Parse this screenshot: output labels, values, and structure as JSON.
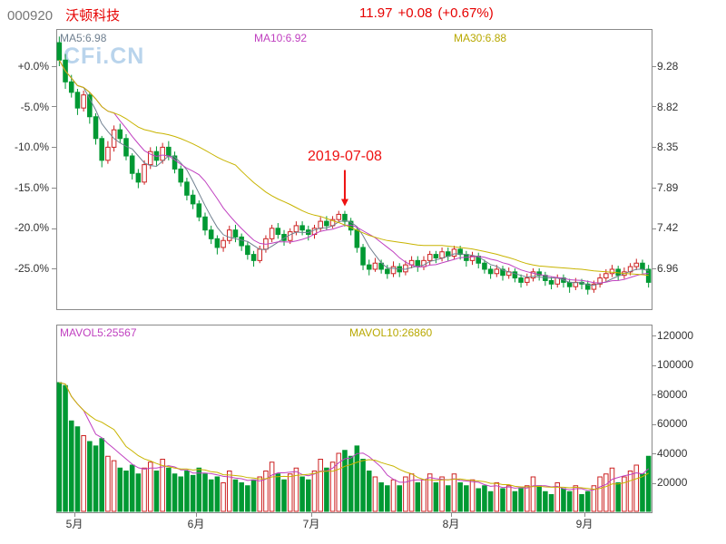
{
  "header": {
    "code": "000920",
    "name": "沃顿科技",
    "price": "11.97",
    "change": "+0.08",
    "change_pct": "(+0.67%)"
  },
  "watermark": "CFi.CN",
  "annotation": {
    "text": "2019-07-08"
  },
  "main_chart": {
    "ma5_label": "MA5:6.98",
    "ma10_label": "MA10:6.92",
    "ma30_label": "MA30:6.88"
  },
  "volume_chart": {
    "mavol5_label": "MAVOL5:25567",
    "mavol10_label": "MAVOL10:26860"
  },
  "axes": {
    "main_left": [
      "+0.0%",
      "-5.0%",
      "-10.0%",
      "-15.0%",
      "-20.0%",
      "-25.0%"
    ],
    "main_right": [
      "9.28",
      "8.82",
      "8.35",
      "7.89",
      "7.42",
      "6.96"
    ],
    "vol_right": [
      "120000",
      "100000",
      "80000",
      "60000",
      "40000",
      "20000"
    ],
    "months": [
      "5月",
      "6月",
      "7月",
      "8月",
      "9月"
    ]
  },
  "colors": {
    "up": "#cc2222",
    "down": "#009933",
    "ma5": "#708090",
    "ma10": "#c040c0",
    "ma30": "#c8b400",
    "annotation": "#ee1111",
    "watermark": "#b9d4ec",
    "border": "#8a8a8a"
  },
  "chart_data": {
    "type": "candlestick+volume",
    "title": "000920 沃顿科技 daily K-line with volume",
    "legend": [
      "MA5",
      "MA10",
      "MA30",
      "MAVOL5",
      "MAVOL10"
    ],
    "pct_axis_left": [
      "+0.0%",
      "-5.0%",
      "-10.0%",
      "-15.0%",
      "-20.0%",
      "-25.0%"
    ],
    "price_axis_right": [
      9.28,
      8.82,
      8.35,
      7.89,
      7.42,
      6.96
    ],
    "volume_axis": [
      120000,
      100000,
      80000,
      60000,
      40000,
      20000
    ],
    "month_labels": [
      "5月",
      "6月",
      "7月",
      "8月",
      "9月"
    ],
    "month_boundaries": [
      3,
      23,
      42,
      65,
      87
    ],
    "annotation_index": 47,
    "annotation_text": "2019-07-08",
    "candles": [
      [
        9.55,
        9.62,
        9.28,
        9.35
      ],
      [
        9.35,
        9.42,
        9.02,
        9.1
      ],
      [
        9.1,
        9.18,
        8.92,
        8.98
      ],
      [
        8.98,
        9.02,
        8.72,
        8.8
      ],
      [
        8.8,
        9.0,
        8.76,
        8.95
      ],
      [
        8.95,
        8.98,
        8.62,
        8.7
      ],
      [
        8.7,
        8.74,
        8.38,
        8.45
      ],
      [
        8.45,
        8.48,
        8.12,
        8.2
      ],
      [
        8.2,
        8.42,
        8.16,
        8.35
      ],
      [
        8.35,
        8.6,
        8.3,
        8.55
      ],
      [
        8.55,
        8.62,
        8.4,
        8.45
      ],
      [
        8.45,
        8.5,
        8.2,
        8.25
      ],
      [
        8.25,
        8.28,
        7.98,
        8.05
      ],
      [
        8.05,
        8.1,
        7.88,
        7.95
      ],
      [
        7.95,
        8.2,
        7.92,
        8.15
      ],
      [
        8.15,
        8.35,
        8.1,
        8.3
      ],
      [
        8.3,
        8.36,
        8.14,
        8.2
      ],
      [
        8.2,
        8.4,
        8.16,
        8.35
      ],
      [
        8.35,
        8.42,
        8.2,
        8.25
      ],
      [
        8.25,
        8.3,
        8.05,
        8.1
      ],
      [
        8.1,
        8.14,
        7.9,
        7.95
      ],
      [
        7.95,
        8.0,
        7.74,
        7.8
      ],
      [
        7.8,
        7.86,
        7.64,
        7.7
      ],
      [
        7.7,
        7.74,
        7.5,
        7.55
      ],
      [
        7.55,
        7.6,
        7.34,
        7.4
      ],
      [
        7.4,
        7.45,
        7.24,
        7.3
      ],
      [
        7.3,
        7.34,
        7.12,
        7.2
      ],
      [
        7.2,
        7.32,
        7.15,
        7.28
      ],
      [
        7.28,
        7.45,
        7.24,
        7.4
      ],
      [
        7.4,
        7.46,
        7.26,
        7.32
      ],
      [
        7.32,
        7.36,
        7.16,
        7.22
      ],
      [
        7.22,
        7.26,
        7.06,
        7.12
      ],
      [
        7.12,
        7.16,
        6.98,
        7.05
      ],
      [
        7.05,
        7.22,
        7.02,
        7.18
      ],
      [
        7.18,
        7.34,
        7.14,
        7.3
      ],
      [
        7.3,
        7.46,
        7.26,
        7.42
      ],
      [
        7.42,
        7.48,
        7.3,
        7.35
      ],
      [
        7.35,
        7.4,
        7.22,
        7.28
      ],
      [
        7.28,
        7.42,
        7.24,
        7.38
      ],
      [
        7.38,
        7.5,
        7.34,
        7.45
      ],
      [
        7.45,
        7.5,
        7.34,
        7.4
      ],
      [
        7.4,
        7.45,
        7.28,
        7.35
      ],
      [
        7.35,
        7.46,
        7.3,
        7.42
      ],
      [
        7.42,
        7.55,
        7.38,
        7.5
      ],
      [
        7.5,
        7.56,
        7.4,
        7.45
      ],
      [
        7.45,
        7.56,
        7.42,
        7.52
      ],
      [
        7.52,
        7.62,
        7.48,
        7.58
      ],
      [
        7.58,
        7.62,
        7.44,
        7.5
      ],
      [
        7.5,
        7.54,
        7.34,
        7.4
      ],
      [
        7.4,
        7.44,
        7.14,
        7.2
      ],
      [
        7.2,
        7.24,
        6.94,
        7.0
      ],
      [
        7.0,
        7.06,
        6.88,
        6.95
      ],
      [
        6.95,
        7.08,
        6.92,
        7.02
      ],
      [
        7.02,
        7.06,
        6.9,
        6.95
      ],
      [
        6.95,
        7.0,
        6.84,
        6.9
      ],
      [
        6.9,
        7.04,
        6.86,
        6.98
      ],
      [
        6.98,
        7.02,
        6.86,
        6.92
      ],
      [
        6.92,
        7.05,
        6.88,
        7.0
      ],
      [
        7.0,
        7.1,
        6.96,
        7.05
      ],
      [
        7.05,
        7.1,
        6.92,
        6.98
      ],
      [
        6.98,
        7.1,
        6.94,
        7.05
      ],
      [
        7.05,
        7.16,
        7.0,
        7.12
      ],
      [
        7.12,
        7.16,
        7.02,
        7.08
      ],
      [
        7.08,
        7.2,
        7.04,
        7.15
      ],
      [
        7.15,
        7.2,
        7.04,
        7.1
      ],
      [
        7.1,
        7.22,
        7.06,
        7.18
      ],
      [
        7.18,
        7.22,
        7.06,
        7.12
      ],
      [
        7.12,
        7.16,
        6.98,
        7.05
      ],
      [
        7.05,
        7.15,
        7.0,
        7.1
      ],
      [
        7.1,
        7.14,
        6.96,
        7.02
      ],
      [
        7.02,
        7.06,
        6.9,
        6.95
      ],
      [
        6.95,
        6.99,
        6.84,
        6.9
      ],
      [
        6.9,
        7.0,
        6.86,
        6.95
      ],
      [
        6.95,
        6.99,
        6.82,
        6.88
      ],
      [
        6.88,
        6.97,
        6.84,
        6.92
      ],
      [
        6.92,
        6.96,
        6.8,
        6.85
      ],
      [
        6.85,
        6.89,
        6.74,
        6.8
      ],
      [
        6.8,
        6.9,
        6.76,
        6.85
      ],
      [
        6.85,
        6.96,
        6.81,
        6.92
      ],
      [
        6.92,
        6.96,
        6.82,
        6.88
      ],
      [
        6.88,
        6.92,
        6.76,
        6.82
      ],
      [
        6.82,
        6.86,
        6.72,
        6.78
      ],
      [
        6.78,
        6.89,
        6.74,
        6.85
      ],
      [
        6.85,
        6.89,
        6.74,
        6.8
      ],
      [
        6.8,
        6.84,
        6.68,
        6.75
      ],
      [
        6.75,
        6.85,
        6.71,
        6.8
      ],
      [
        6.8,
        6.84,
        6.72,
        6.78
      ],
      [
        6.78,
        6.82,
        6.66,
        6.72
      ],
      [
        6.72,
        6.82,
        6.68,
        6.78
      ],
      [
        6.78,
        6.9,
        6.74,
        6.85
      ],
      [
        6.85,
        6.95,
        6.81,
        6.9
      ],
      [
        6.9,
        7.0,
        6.86,
        6.95
      ],
      [
        6.95,
        6.99,
        6.82,
        6.88
      ],
      [
        6.88,
        6.97,
        6.84,
        6.92
      ],
      [
        6.92,
        7.02,
        6.88,
        6.98
      ],
      [
        6.98,
        7.07,
        6.94,
        7.02
      ],
      [
        7.02,
        7.06,
        6.9,
        6.95
      ],
      [
        6.95,
        7.0,
        6.74,
        6.8
      ]
    ],
    "volumes": [
      88000,
      86000,
      62000,
      58000,
      52000,
      48000,
      45000,
      50000,
      38000,
      35000,
      30000,
      28000,
      32000,
      26000,
      30000,
      34000,
      28000,
      36000,
      30000,
      26000,
      24000,
      28000,
      25000,
      30000,
      26000,
      22000,
      24000,
      20000,
      28000,
      22000,
      20000,
      18000,
      22000,
      24000,
      28000,
      34000,
      26000,
      22000,
      26000,
      30000,
      24000,
      22000,
      28000,
      36000,
      30000,
      34000,
      40000,
      42000,
      38000,
      45000,
      36000,
      28000,
      24000,
      20000,
      18000,
      22000,
      18000,
      24000,
      26000,
      20000,
      22000,
      26000,
      20000,
      24000,
      18000,
      26000,
      20000,
      18000,
      22000,
      16000,
      18000,
      14000,
      20000,
      16000,
      18000,
      14000,
      16000,
      18000,
      24000,
      18000,
      14000,
      12000,
      20000,
      16000,
      14000,
      18000,
      12000,
      14000,
      18000,
      24000,
      26000,
      30000,
      20000,
      24000,
      28000,
      32000,
      26000,
      38000
    ]
  }
}
